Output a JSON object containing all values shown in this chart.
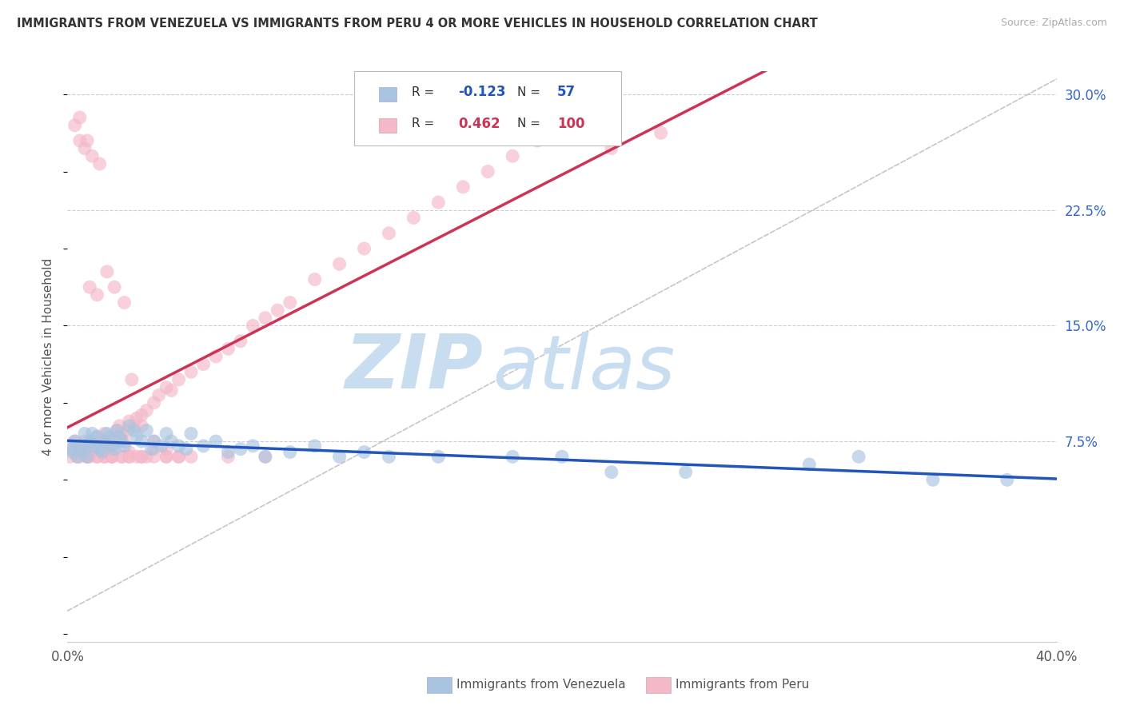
{
  "title": "IMMIGRANTS FROM VENEZUELA VS IMMIGRANTS FROM PERU 4 OR MORE VEHICLES IN HOUSEHOLD CORRELATION CHART",
  "source": "Source: ZipAtlas.com",
  "ylabel": "4 or more Vehicles in Household",
  "xlim": [
    0.0,
    0.4
  ],
  "ylim": [
    -0.055,
    0.315
  ],
  "xticks": [
    0.0,
    0.4
  ],
  "xticklabels": [
    "0.0%",
    "40.0%"
  ],
  "yticks": [
    0.075,
    0.15,
    0.225,
    0.3
  ],
  "yticklabels": [
    "7.5%",
    "15.0%",
    "22.5%",
    "30.0%"
  ],
  "color_venezuela": "#a8c4e0",
  "color_peru": "#f4b8c8",
  "trendline_color_venezuela": "#2255bb",
  "trendline_color_peru": "#cc3355",
  "trendline_dashed_color": "#b8b8b8",
  "background_color": "#ffffff",
  "grid_color": "#ccccdd",
  "watermark_zip": "ZIP",
  "watermark_atlas": "atlas",
  "watermark_color_zip": "#c8ddf0",
  "watermark_color_atlas": "#c8ddf0",
  "venezuela_scatter_x": [
    0.001,
    0.002,
    0.003,
    0.004,
    0.005,
    0.006,
    0.007,
    0.008,
    0.008,
    0.009,
    0.01,
    0.011,
    0.012,
    0.013,
    0.014,
    0.015,
    0.016,
    0.017,
    0.018,
    0.019,
    0.02,
    0.021,
    0.022,
    0.023,
    0.025,
    0.027,
    0.028,
    0.03,
    0.032,
    0.034,
    0.035,
    0.038,
    0.04,
    0.042,
    0.045,
    0.048,
    0.05,
    0.055,
    0.06,
    0.065,
    0.07,
    0.075,
    0.08,
    0.09,
    0.1,
    0.11,
    0.12,
    0.13,
    0.15,
    0.18,
    0.2,
    0.22,
    0.25,
    0.3,
    0.32,
    0.35,
    0.38
  ],
  "venezuela_scatter_y": [
    0.07,
    0.068,
    0.075,
    0.065,
    0.072,
    0.068,
    0.08,
    0.072,
    0.065,
    0.075,
    0.08,
    0.072,
    0.078,
    0.07,
    0.068,
    0.075,
    0.08,
    0.078,
    0.072,
    0.07,
    0.082,
    0.078,
    0.075,
    0.072,
    0.085,
    0.082,
    0.078,
    0.075,
    0.082,
    0.07,
    0.075,
    0.072,
    0.08,
    0.075,
    0.072,
    0.07,
    0.08,
    0.072,
    0.075,
    0.068,
    0.07,
    0.072,
    0.065,
    0.068,
    0.072,
    0.065,
    0.068,
    0.065,
    0.065,
    0.065,
    0.065,
    0.055,
    0.055,
    0.06,
    0.065,
    0.05,
    0.05
  ],
  "peru_scatter_x": [
    0.001,
    0.002,
    0.003,
    0.004,
    0.005,
    0.006,
    0.007,
    0.008,
    0.009,
    0.01,
    0.011,
    0.012,
    0.013,
    0.014,
    0.015,
    0.016,
    0.017,
    0.018,
    0.019,
    0.02,
    0.021,
    0.022,
    0.023,
    0.024,
    0.025,
    0.027,
    0.028,
    0.03,
    0.032,
    0.035,
    0.037,
    0.04,
    0.042,
    0.045,
    0.05,
    0.055,
    0.06,
    0.065,
    0.07,
    0.075,
    0.08,
    0.085,
    0.09,
    0.1,
    0.11,
    0.12,
    0.13,
    0.14,
    0.15,
    0.16,
    0.17,
    0.18,
    0.19,
    0.2,
    0.22,
    0.24,
    0.003,
    0.005,
    0.007,
    0.009,
    0.012,
    0.015,
    0.018,
    0.022,
    0.025,
    0.028,
    0.032,
    0.035,
    0.04,
    0.045,
    0.005,
    0.008,
    0.01,
    0.013,
    0.016,
    0.019,
    0.023,
    0.026,
    0.03,
    0.035,
    0.04,
    0.008,
    0.012,
    0.015,
    0.018,
    0.022,
    0.025,
    0.03,
    0.035,
    0.045,
    0.005,
    0.008,
    0.012,
    0.018,
    0.025,
    0.03,
    0.04,
    0.05,
    0.065,
    0.08
  ],
  "peru_scatter_y": [
    0.065,
    0.07,
    0.075,
    0.065,
    0.07,
    0.068,
    0.075,
    0.072,
    0.065,
    0.075,
    0.072,
    0.078,
    0.07,
    0.075,
    0.08,
    0.075,
    0.072,
    0.07,
    0.078,
    0.082,
    0.085,
    0.08,
    0.075,
    0.082,
    0.088,
    0.085,
    0.09,
    0.092,
    0.095,
    0.1,
    0.105,
    0.11,
    0.108,
    0.115,
    0.12,
    0.125,
    0.13,
    0.135,
    0.14,
    0.15,
    0.155,
    0.16,
    0.165,
    0.18,
    0.19,
    0.2,
    0.21,
    0.22,
    0.23,
    0.24,
    0.25,
    0.26,
    0.27,
    0.28,
    0.265,
    0.275,
    0.28,
    0.27,
    0.265,
    0.175,
    0.17,
    0.065,
    0.065,
    0.065,
    0.065,
    0.065,
    0.065,
    0.07,
    0.065,
    0.065,
    0.285,
    0.27,
    0.26,
    0.255,
    0.185,
    0.175,
    0.165,
    0.115,
    0.085,
    0.075,
    0.07,
    0.065,
    0.065,
    0.065,
    0.065,
    0.065,
    0.068,
    0.065,
    0.065,
    0.065,
    0.065,
    0.065,
    0.065,
    0.065,
    0.065,
    0.065,
    0.065,
    0.065,
    0.065,
    0.065
  ]
}
